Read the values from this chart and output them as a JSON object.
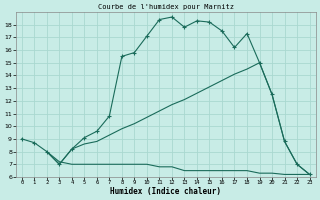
{
  "title": "Courbe de l'humidex pour Marnitz",
  "xlabel": "Humidex (Indice chaleur)",
  "bg_color": "#c8ece6",
  "line_color": "#1a6b5a",
  "grid_color": "#aad8d0",
  "xlim": [
    -0.5,
    23.5
  ],
  "ylim": [
    6,
    19
  ],
  "yticks": [
    6,
    7,
    8,
    9,
    10,
    11,
    12,
    13,
    14,
    15,
    16,
    17,
    18
  ],
  "xticks": [
    0,
    1,
    2,
    3,
    4,
    5,
    6,
    7,
    8,
    9,
    10,
    11,
    12,
    13,
    14,
    15,
    16,
    17,
    18,
    19,
    20,
    21,
    22,
    23
  ],
  "line1_x": [
    0,
    1,
    2,
    3,
    4,
    5,
    6,
    7,
    8,
    9,
    10,
    11,
    12,
    13,
    14,
    15,
    16,
    17,
    18,
    19,
    20,
    21,
    22,
    23
  ],
  "line1_y": [
    9.0,
    8.7,
    8.0,
    7.0,
    8.2,
    9.1,
    9.6,
    10.8,
    15.5,
    15.8,
    17.1,
    18.4,
    18.6,
    17.8,
    18.3,
    18.2,
    17.5,
    16.2,
    17.3,
    15.0,
    12.5,
    8.8,
    7.0,
    6.2
  ],
  "line2_x": [
    2,
    3,
    4,
    5,
    6,
    7,
    8,
    9,
    10,
    11,
    12,
    13,
    14,
    15,
    16,
    17,
    18,
    19,
    20,
    21,
    22,
    23
  ],
  "line2_y": [
    8.0,
    7.0,
    8.2,
    8.6,
    8.8,
    9.3,
    9.8,
    10.2,
    10.7,
    11.2,
    11.7,
    12.1,
    12.6,
    13.1,
    13.6,
    14.1,
    14.5,
    15.0,
    12.5,
    8.8,
    7.0,
    6.2
  ],
  "line3_x": [
    2,
    3,
    4,
    5,
    6,
    7,
    8,
    9,
    10,
    11,
    12,
    13,
    14,
    15,
    16,
    17,
    18,
    19,
    20,
    21,
    22,
    23
  ],
  "line3_y": [
    8.0,
    7.2,
    7.0,
    7.0,
    7.0,
    7.0,
    7.0,
    7.0,
    7.0,
    6.8,
    6.8,
    6.5,
    6.5,
    6.5,
    6.5,
    6.5,
    6.5,
    6.3,
    6.3,
    6.2,
    6.2,
    6.2
  ]
}
